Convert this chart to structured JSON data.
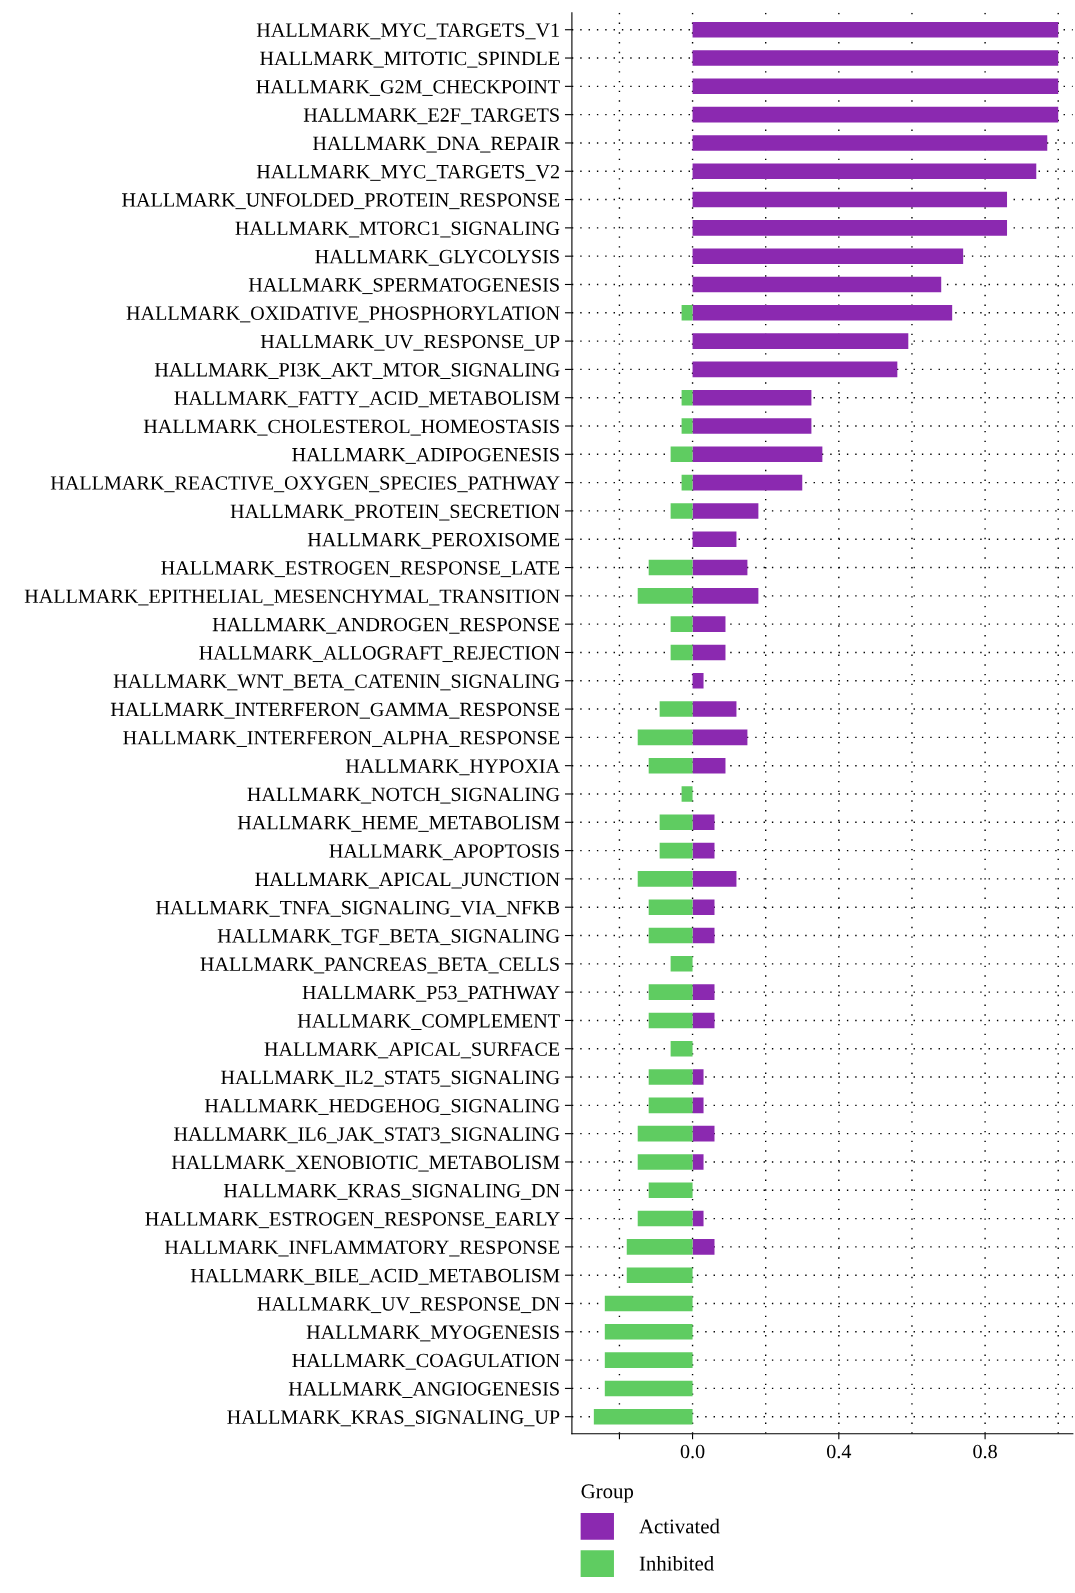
{
  "chart_data": {
    "type": "bar",
    "orientation": "horizontal",
    "categories": [
      "HALLMARK_MYC_TARGETS_V1",
      "HALLMARK_MITOTIC_SPINDLE",
      "HALLMARK_G2M_CHECKPOINT",
      "HALLMARK_E2F_TARGETS",
      "HALLMARK_DNA_REPAIR",
      "HALLMARK_MYC_TARGETS_V2",
      "HALLMARK_UNFOLDED_PROTEIN_RESPONSE",
      "HALLMARK_MTORC1_SIGNALING",
      "HALLMARK_GLYCOLYSIS",
      "HALLMARK_SPERMATOGENESIS",
      "HALLMARK_OXIDATIVE_PHOSPHORYLATION",
      "HALLMARK_UV_RESPONSE_UP",
      "HALLMARK_PI3K_AKT_MTOR_SIGNALING",
      "HALLMARK_FATTY_ACID_METABOLISM",
      "HALLMARK_CHOLESTEROL_HOMEOSTASIS",
      "HALLMARK_ADIPOGENESIS",
      "HALLMARK_REACTIVE_OXYGEN_SPECIES_PATHWAY",
      "HALLMARK_PROTEIN_SECRETION",
      "HALLMARK_PEROXISOME",
      "HALLMARK_ESTROGEN_RESPONSE_LATE",
      "HALLMARK_EPITHELIAL_MESENCHYMAL_TRANSITION",
      "HALLMARK_ANDROGEN_RESPONSE",
      "HALLMARK_ALLOGRAFT_REJECTION",
      "HALLMARK_WNT_BETA_CATENIN_SIGNALING",
      "HALLMARK_INTERFERON_GAMMA_RESPONSE",
      "HALLMARK_INTERFERON_ALPHA_RESPONSE",
      "HALLMARK_HYPOXIA",
      "HALLMARK_NOTCH_SIGNALING",
      "HALLMARK_HEME_METABOLISM",
      "HALLMARK_APOPTOSIS",
      "HALLMARK_APICAL_JUNCTION",
      "HALLMARK_TNFA_SIGNALING_VIA_NFKB",
      "HALLMARK_TGF_BETA_SIGNALING",
      "HALLMARK_PANCREAS_BETA_CELLS",
      "HALLMARK_P53_PATHWAY",
      "HALLMARK_COMPLEMENT",
      "HALLMARK_APICAL_SURFACE",
      "HALLMARK_IL2_STAT5_SIGNALING",
      "HALLMARK_HEDGEHOG_SIGNALING",
      "HALLMARK_IL6_JAK_STAT3_SIGNALING",
      "HALLMARK_XENOBIOTIC_METABOLISM",
      "HALLMARK_KRAS_SIGNALING_DN",
      "HALLMARK_ESTROGEN_RESPONSE_EARLY",
      "HALLMARK_INFLAMMATORY_RESPONSE",
      "HALLMARK_BILE_ACID_METABOLISM",
      "HALLMARK_UV_RESPONSE_DN",
      "HALLMARK_MYOGENESIS",
      "HALLMARK_COAGULATION",
      "HALLMARK_ANGIOGENESIS",
      "HALLMARK_KRAS_SIGNALING_UP"
    ],
    "series": [
      {
        "name": "Activated",
        "color": "#8b29b0",
        "values": [
          1.0,
          1.0,
          1.0,
          1.0,
          0.97,
          0.94,
          0.86,
          0.86,
          0.74,
          0.68,
          0.71,
          0.59,
          0.56,
          0.325,
          0.325,
          0.355,
          0.3,
          0.18,
          0.12,
          0.15,
          0.18,
          0.09,
          0.09,
          0.03,
          0.12,
          0.15,
          0.09,
          null,
          0.06,
          0.06,
          0.12,
          0.06,
          0.06,
          null,
          0.06,
          0.06,
          null,
          0.03,
          0.03,
          0.06,
          0.03,
          null,
          0.03,
          0.06,
          null,
          null,
          null,
          null,
          null,
          null
        ]
      },
      {
        "name": "Inhibited",
        "color": "#5fcc61",
        "values": [
          null,
          null,
          null,
          null,
          null,
          null,
          null,
          null,
          null,
          null,
          -0.03,
          null,
          null,
          -0.03,
          -0.03,
          -0.06,
          -0.03,
          -0.06,
          null,
          -0.12,
          -0.15,
          -0.06,
          -0.06,
          null,
          -0.09,
          -0.15,
          -0.12,
          -0.03,
          -0.09,
          -0.09,
          -0.15,
          -0.12,
          -0.12,
          -0.06,
          -0.12,
          -0.12,
          -0.06,
          -0.12,
          -0.12,
          -0.15,
          -0.15,
          -0.12,
          -0.15,
          -0.18,
          -0.18,
          -0.24,
          -0.24,
          -0.24,
          -0.24,
          -0.27
        ]
      }
    ],
    "xlim": [
      -0.33,
      1.04
    ],
    "xticks": [
      {
        "value": -0.2,
        "label": null
      },
      "0.0",
      0.4,
      0.8
    ],
    "stacked": true,
    "grid": true,
    "legend": "bottom left",
    "legend_title": "Group"
  }
}
